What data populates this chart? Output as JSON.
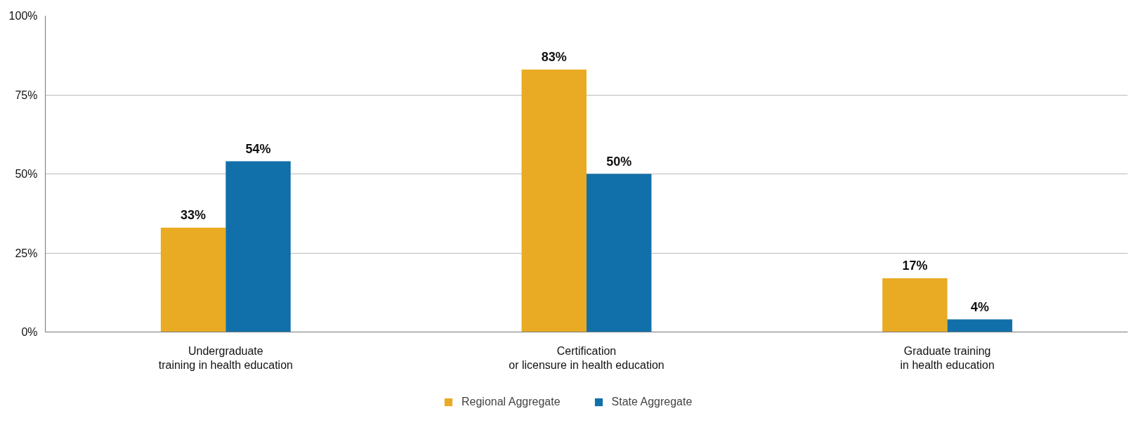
{
  "chart_data": {
    "type": "bar",
    "categories": [
      "Undergraduate\ntraining in health education",
      "Certification\nor licensure in health education",
      "Graduate training\nin health education"
    ],
    "series": [
      {
        "name": "Regional Aggregate",
        "color": "#e9ab24",
        "values": [
          33,
          83,
          17
        ],
        "value_labels": [
          "33%",
          "83%",
          "17%"
        ]
      },
      {
        "name": "State Aggregate",
        "color": "#1170aa",
        "values": [
          54,
          50,
          4
        ],
        "value_labels": [
          "54%",
          "50%",
          "4%"
        ]
      }
    ],
    "ylim": [
      0,
      100
    ],
    "yticks": [
      {
        "value": 0,
        "label": "0%"
      },
      {
        "value": 25,
        "label": "25%"
      },
      {
        "value": 50,
        "label": "50%"
      },
      {
        "value": 75,
        "label": "75%"
      },
      {
        "value": 100,
        "label": "100%"
      }
    ],
    "grid": "y",
    "legend": "bottom"
  }
}
